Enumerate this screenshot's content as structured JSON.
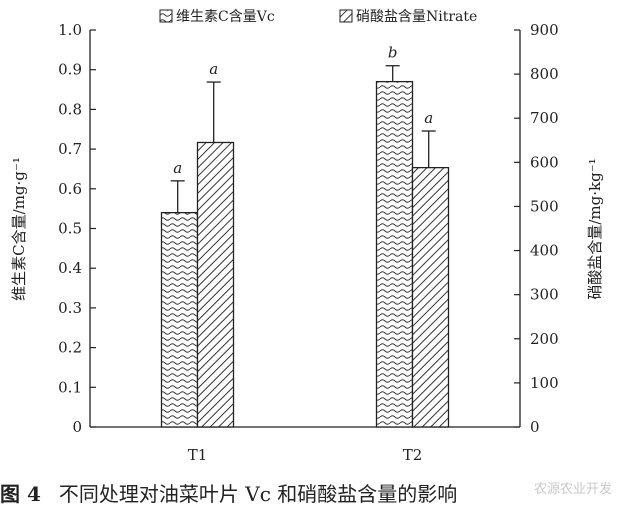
{
  "chart_data": {
    "type": "bar",
    "categories": [
      "T1",
      "T2"
    ],
    "series": [
      {
        "name": "维生素C含量Vc",
        "axis": "left",
        "pattern": "wave",
        "values": [
          0.54,
          0.87
        ],
        "error": [
          0.08,
          0.04
        ],
        "letters": [
          "a",
          "b"
        ]
      },
      {
        "name": "硝酸盐含量Nitrate",
        "axis": "right",
        "pattern": "diagonal",
        "values": [
          645,
          588
        ],
        "error": [
          137,
          83
        ],
        "letters": [
          "a",
          "a"
        ]
      }
    ],
    "y_left": {
      "label": "维生素C含量/mg·g⁻¹",
      "range": [
        0,
        1.0
      ],
      "ticks": [
        "0",
        "0.1",
        "0.2",
        "0.3",
        "0.4",
        "0.5",
        "0.6",
        "0.7",
        "0.8",
        "0.9",
        "1.0"
      ]
    },
    "y_right": {
      "label": "硝酸盐含量/mg·kg⁻¹",
      "range": [
        0,
        900
      ],
      "ticks": [
        "0",
        "100",
        "200",
        "300",
        "400",
        "500",
        "600",
        "700",
        "800",
        "900"
      ]
    },
    "legend_position": "top",
    "grid": false
  },
  "caption": {
    "figure_number": "图 4",
    "text": "不同处理对油菜叶片 Vc 和硝酸盐含量的影响"
  },
  "watermark": "农源农业开发"
}
